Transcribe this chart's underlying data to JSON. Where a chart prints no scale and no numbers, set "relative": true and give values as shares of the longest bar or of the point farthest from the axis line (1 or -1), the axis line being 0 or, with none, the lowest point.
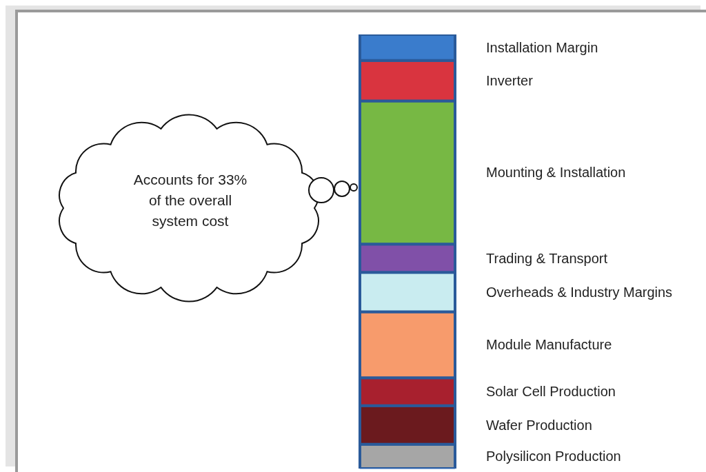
{
  "chart_data": {
    "type": "bar",
    "stacked": true,
    "relative": true,
    "categories": [
      null
    ],
    "annotations": [
      "Accounts for 33% of the overall system cost"
    ],
    "series": [
      {
        "name": "Polysilicon Production",
        "color": "#a6a6a6",
        "values": [
          0.056
        ]
      },
      {
        "name": "Wafer Production",
        "color": "#6b1a1e",
        "values": [
          0.089
        ]
      },
      {
        "name": "Solar Cell Production",
        "color": "#a8202e",
        "values": [
          0.064
        ]
      },
      {
        "name": "Module Manufacture",
        "color": "#f79b6c",
        "values": [
          0.152
        ]
      },
      {
        "name": "Overheads & Industry Margins",
        "color": "#c9ecf0",
        "values": [
          0.091
        ]
      },
      {
        "name": "Trading & Transport",
        "color": "#8050a8",
        "values": [
          0.065
        ]
      },
      {
        "name": "Mounting & Installation",
        "color": "#77b844",
        "values": [
          0.33
        ]
      },
      {
        "name": "Inverter",
        "color": "#d9343f",
        "values": [
          0.093
        ]
      },
      {
        "name": "Installation Margin",
        "color": "#3a7ccc",
        "values": [
          0.06
        ]
      }
    ]
  }
}
